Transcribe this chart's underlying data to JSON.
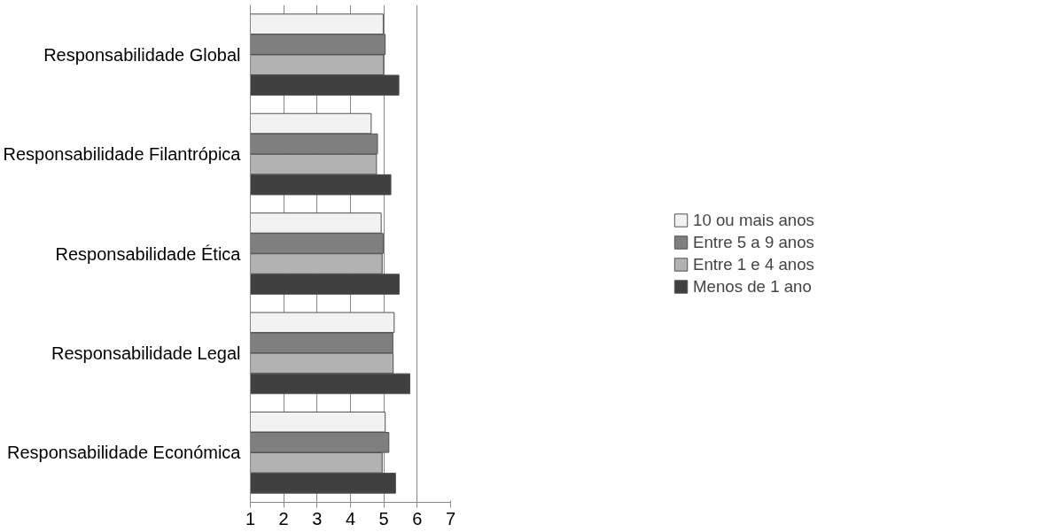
{
  "chart_data": {
    "type": "bar",
    "orientation": "horizontal",
    "categories": [
      "Responsabilidade Global",
      "Responsabilidade Filantrópica",
      "Responsabilidade Ética",
      "Responsabilidade Legal",
      "Responsabilidade Económica"
    ],
    "series": [
      {
        "name": "10 ou mais anos",
        "color": "#f2f2f2",
        "values": [
          4.98,
          4.62,
          4.92,
          5.31,
          5.04
        ]
      },
      {
        "name": "Entre 5 a 9 anos",
        "color": "#7f7f7f",
        "values": [
          5.04,
          4.81,
          4.98,
          5.27,
          5.15
        ]
      },
      {
        "name": "Entre 1 e 4 anos",
        "color": "#b2b2b2",
        "values": [
          4.99,
          4.78,
          4.95,
          5.28,
          4.95
        ]
      },
      {
        "name": "Menos de 1 ano",
        "color": "#404040",
        "values": [
          5.45,
          5.21,
          5.46,
          5.78,
          5.35
        ]
      }
    ],
    "xlim": [
      1,
      7
    ],
    "xticks": [
      1,
      2,
      3,
      4,
      5,
      6,
      7
    ],
    "grid": "x",
    "legend": "right"
  }
}
